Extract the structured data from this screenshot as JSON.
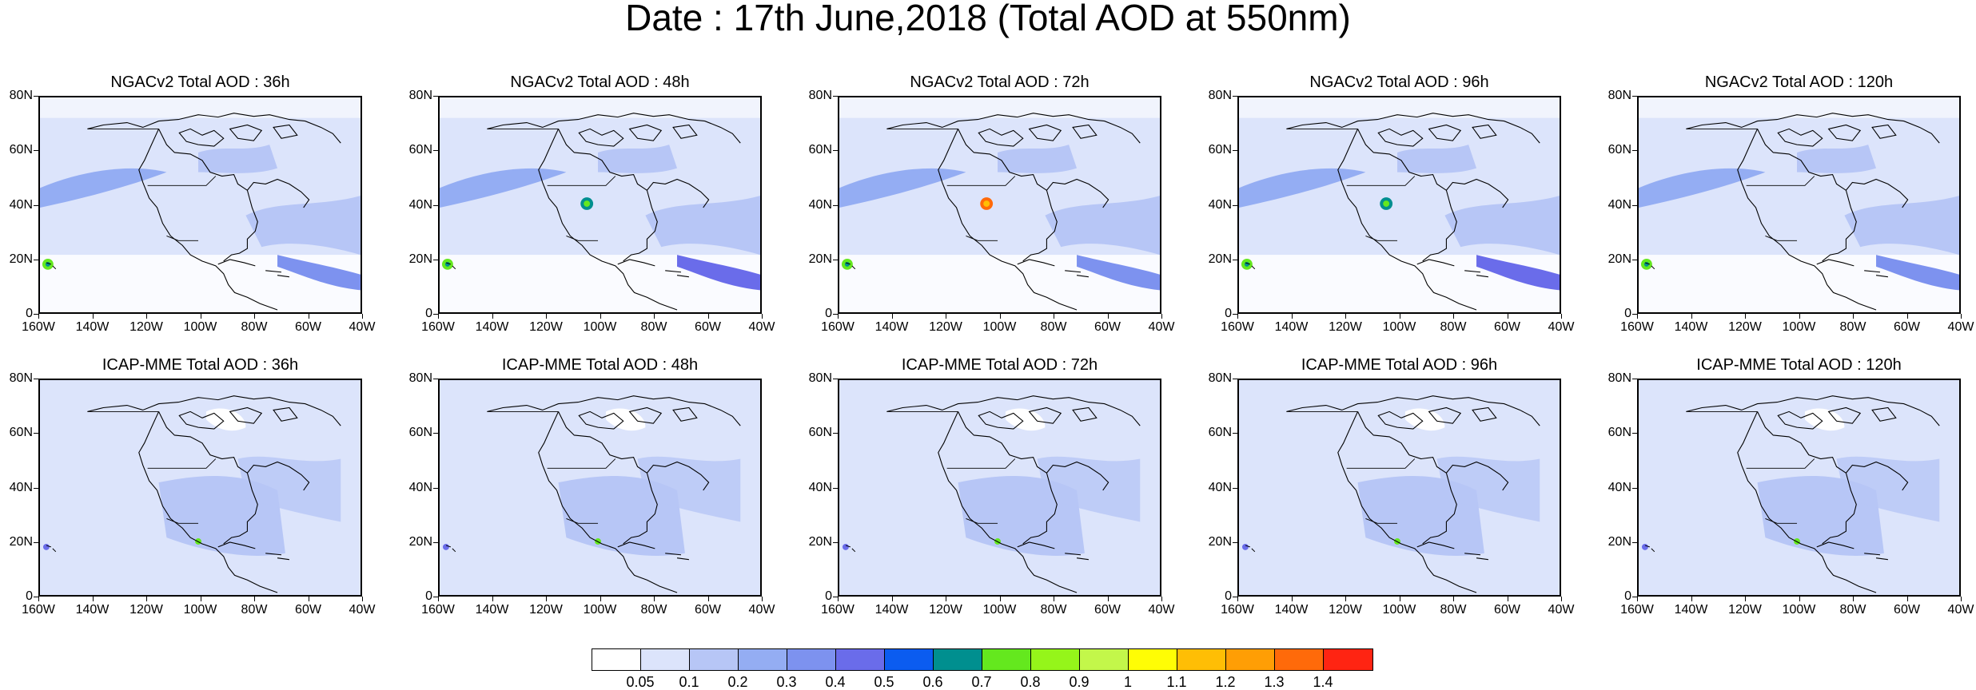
{
  "title": "Date : 17th June,2018 (Total AOD at 550nm)",
  "rows": [
    {
      "model": "NGACv2",
      "panels": [
        {
          "title": "NGACv2 Total AOD : 36h"
        },
        {
          "title": "NGACv2 Total AOD : 48h"
        },
        {
          "title": "NGACv2 Total AOD : 72h"
        },
        {
          "title": "NGACv2 Total AOD : 96h"
        },
        {
          "title": "NGACv2 Total AOD : 120h"
        }
      ]
    },
    {
      "model": "ICAP-MME",
      "panels": [
        {
          "title": "ICAP-MME Total AOD : 36h"
        },
        {
          "title": "ICAP-MME Total AOD : 48h"
        },
        {
          "title": "ICAP-MME Total AOD : 72h"
        },
        {
          "title": "ICAP-MME Total AOD : 96h"
        },
        {
          "title": "ICAP-MME Total AOD : 120h"
        }
      ]
    }
  ],
  "axes": {
    "lat_labels": [
      "80N",
      "60N",
      "40N",
      "20N",
      "0"
    ],
    "lon_labels": [
      "160W",
      "140W",
      "120W",
      "100W",
      "80W",
      "60W",
      "40W"
    ]
  },
  "colorbar": {
    "colors": [
      "#ffffff",
      "#dce4fb",
      "#b7c6f6",
      "#94adf3",
      "#7d92ef",
      "#6a6cea",
      "#0b5cf0",
      "#008f8f",
      "#64e81e",
      "#95f51a",
      "#c3f74a",
      "#fffd05",
      "#ffbe05",
      "#ff9e05",
      "#ff6a0a",
      "#ff2412"
    ],
    "labels": [
      "0.05",
      "0.1",
      "0.2",
      "0.3",
      "0.4",
      "0.5",
      "0.6",
      "0.7",
      "0.8",
      "0.9",
      "1",
      "1.1",
      "1.2",
      "1.3",
      "1.4"
    ]
  }
}
